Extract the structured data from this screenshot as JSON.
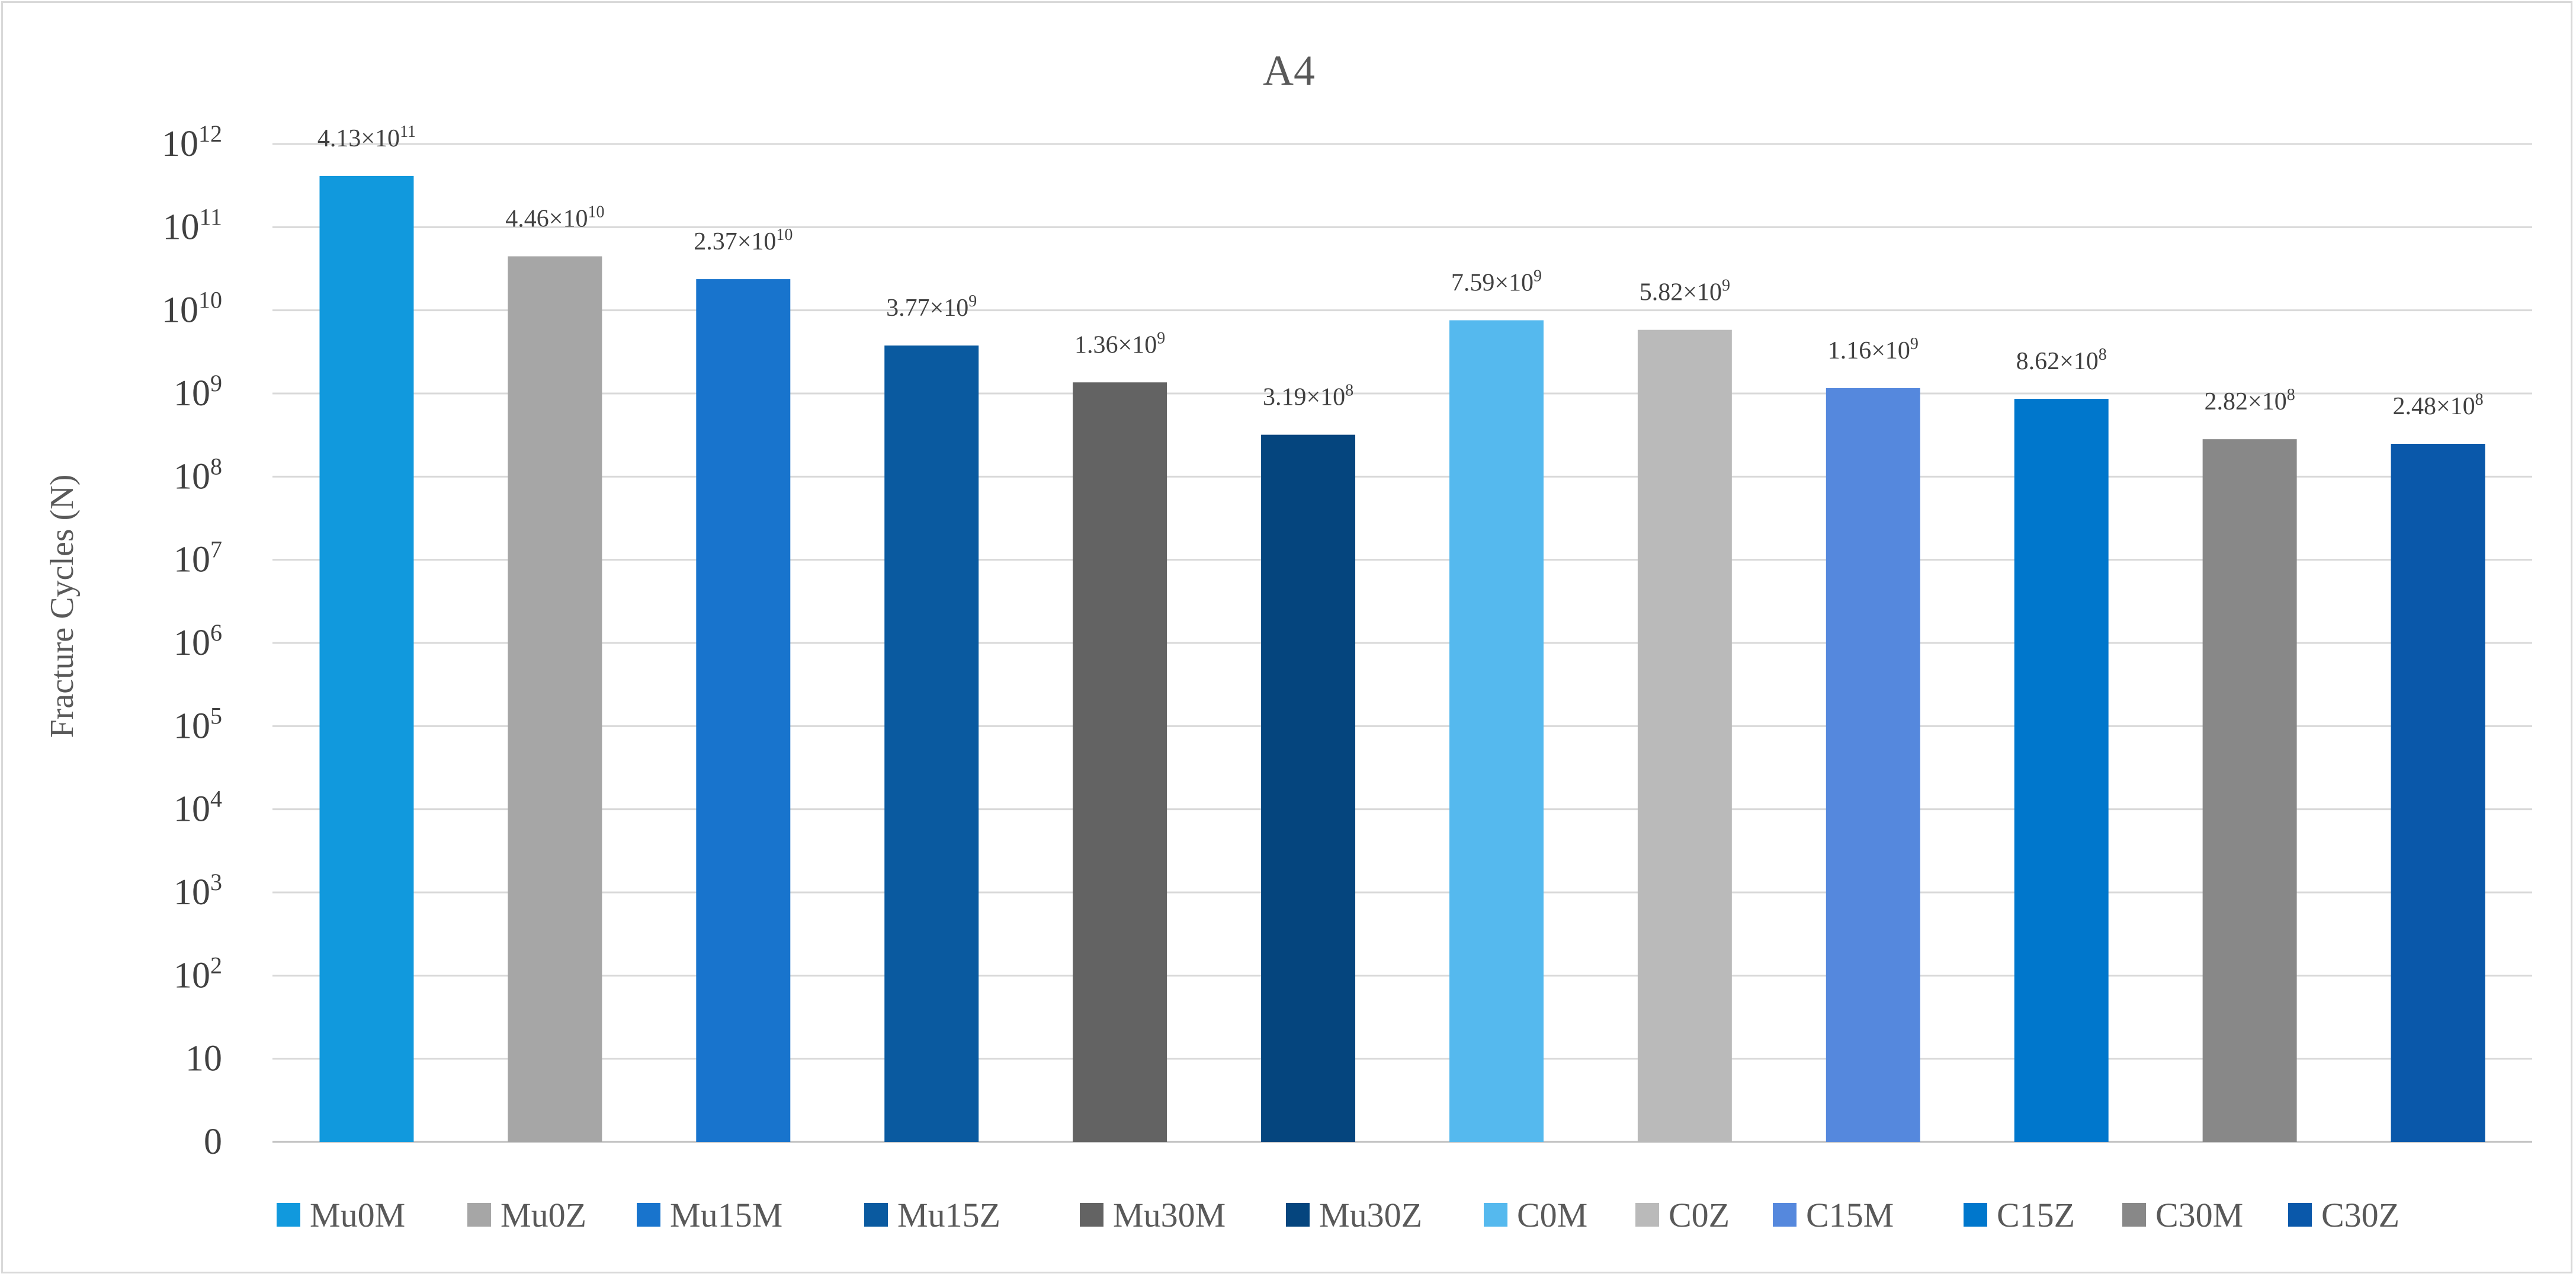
{
  "chart_data": {
    "type": "bar",
    "title": "A4",
    "ylabel": "Fracture Cycles (N)",
    "xlabel": "",
    "yscale": "log",
    "ylim": [
      1,
      1000000000000
    ],
    "yticks": [
      {
        "value": 1,
        "base": "0",
        "exp": ""
      },
      {
        "value": 10,
        "base": "10",
        "exp": ""
      },
      {
        "value": 100,
        "base": "10",
        "exp": "2"
      },
      {
        "value": 1000,
        "base": "10",
        "exp": "3"
      },
      {
        "value": 10000,
        "base": "10",
        "exp": "4"
      },
      {
        "value": 100000,
        "base": "10",
        "exp": "5"
      },
      {
        "value": 1000000,
        "base": "10",
        "exp": "6"
      },
      {
        "value": 10000000,
        "base": "10",
        "exp": "7"
      },
      {
        "value": 100000000,
        "base": "10",
        "exp": "8"
      },
      {
        "value": 1000000000,
        "base": "10",
        "exp": "9"
      },
      {
        "value": 10000000000,
        "base": "10",
        "exp": "10"
      },
      {
        "value": 100000000000,
        "base": "10",
        "exp": "11"
      },
      {
        "value": 1000000000000,
        "base": "10",
        "exp": "12"
      }
    ],
    "grid": true,
    "legend": "bottom",
    "categories": [
      "Mu0M",
      "Mu0Z",
      "Mu15M",
      "Mu15Z",
      "Mu30M",
      "Mu30Z",
      "C0M",
      "C0Z",
      "C15M",
      "C15Z",
      "C30M",
      "C30Z"
    ],
    "values": [
      413000000000,
      44600000000,
      23700000000,
      3770000000,
      1360000000,
      319000000,
      7590000000,
      5820000000,
      1160000000,
      862000000,
      282000000,
      248000000
    ],
    "labels": [
      {
        "mant": "4.13×10",
        "exp": "11"
      },
      {
        "mant": "4.46×10",
        "exp": "10"
      },
      {
        "mant": "2.37×10",
        "exp": "10"
      },
      {
        "mant": "3.77×10",
        "exp": "9"
      },
      {
        "mant": "1.36×10",
        "exp": "9"
      },
      {
        "mant": "3.19×10",
        "exp": "8"
      },
      {
        "mant": "7.59×10",
        "exp": "9"
      },
      {
        "mant": "5.82×10",
        "exp": "9"
      },
      {
        "mant": "1.16×10",
        "exp": "9"
      },
      {
        "mant": "8.62×10",
        "exp": "8"
      },
      {
        "mant": "2.82×10",
        "exp": "8"
      },
      {
        "mant": "2.48×10",
        "exp": "8"
      }
    ],
    "colors": [
      "#1199dd",
      "#a6a6a6",
      "#1874cd",
      "#0a5aa0",
      "#636363",
      "#05457e",
      "#55b9ee",
      "#bababa",
      "#5588dd",
      "#0077cc",
      "#888888",
      "#0a58aa"
    ]
  }
}
